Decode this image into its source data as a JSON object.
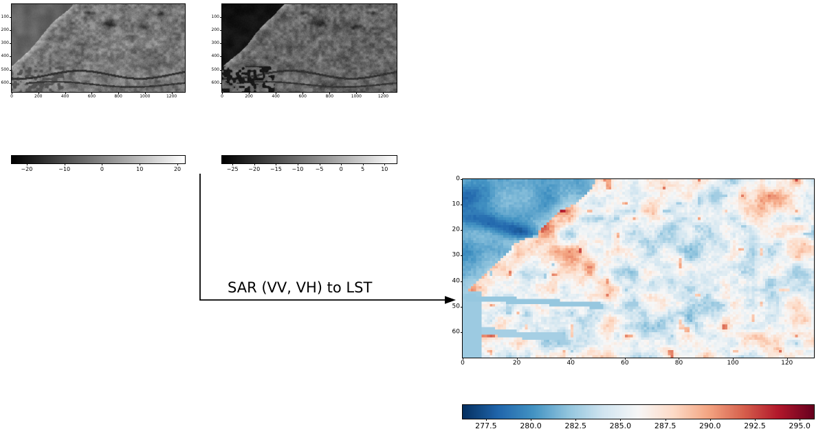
{
  "arrow": {
    "label": "SAR (VV, VH) to LST"
  },
  "colors": {
    "background": "#ffffff",
    "axis": "#000000",
    "gray_low": "#000000",
    "gray_high": "#ffffff",
    "rdbu_r_stops": [
      "#053061",
      "#2166ac",
      "#4393c3",
      "#92c5de",
      "#d1e5f0",
      "#f7f7f7",
      "#fddbc7",
      "#f4a582",
      "#d6604d",
      "#b2182b",
      "#67001f"
    ]
  },
  "chart_data": [
    {
      "id": "sar_vv",
      "type": "heatmap",
      "colormap": "gray",
      "x_tick_values": [
        0,
        200,
        400,
        600,
        800,
        1000,
        1200
      ],
      "x_tick_labels": [
        "0",
        "200",
        "400",
        "600",
        "800",
        "1000",
        "1200"
      ],
      "y_tick_values": [
        100,
        200,
        300,
        400,
        500,
        600
      ],
      "y_tick_labels": [
        "100",
        "200",
        "300",
        "400",
        "500",
        "600"
      ],
      "x_range": [
        0,
        1300
      ],
      "y_range": [
        0,
        670
      ],
      "colorbar": {
        "tick_values": [
          -20,
          -10,
          0,
          10,
          20
        ],
        "tick_labels": [
          "−20",
          "−10",
          "0",
          "10",
          "20"
        ],
        "value_range": [
          -24,
          22
        ]
      }
    },
    {
      "id": "sar_vh",
      "type": "heatmap",
      "colormap": "gray",
      "x_tick_values": [
        0,
        200,
        400,
        600,
        800,
        1000,
        1200
      ],
      "x_tick_labels": [
        "0",
        "200",
        "400",
        "600",
        "800",
        "1000",
        "1200"
      ],
      "y_tick_values": [
        100,
        200,
        300,
        400,
        500,
        600
      ],
      "y_tick_labels": [
        "100",
        "200",
        "300",
        "400",
        "500",
        "600"
      ],
      "x_range": [
        0,
        1300
      ],
      "y_range": [
        0,
        670
      ],
      "colorbar": {
        "tick_values": [
          -25,
          -20,
          -15,
          -10,
          -5,
          0,
          5,
          10
        ],
        "tick_labels": [
          "−25",
          "−20",
          "−15",
          "−10",
          "−5",
          "0",
          "5",
          "10"
        ],
        "value_range": [
          -27.4,
          12.8
        ]
      }
    },
    {
      "id": "lst_pred",
      "type": "heatmap",
      "colormap": "RdBu_r",
      "x_tick_values": [
        0,
        20,
        40,
        60,
        80,
        100,
        120
      ],
      "x_tick_labels": [
        "0",
        "20",
        "40",
        "60",
        "80",
        "100",
        "120"
      ],
      "y_tick_values": [
        0,
        10,
        20,
        30,
        40,
        50,
        60
      ],
      "y_tick_labels": [
        "0",
        "10",
        "20",
        "30",
        "40",
        "50",
        "60"
      ],
      "x_range": [
        0,
        130
      ],
      "y_range": [
        0,
        70
      ],
      "colorbar": {
        "tick_values": [
          277.5,
          280.0,
          282.5,
          285.0,
          287.5,
          290.0,
          292.5,
          295.0
        ],
        "tick_labels": [
          "277.5",
          "280.0",
          "282.5",
          "285.0",
          "287.5",
          "290.0",
          "292.5",
          "295.0"
        ],
        "value_range": [
          276.2,
          295.8
        ]
      }
    }
  ]
}
